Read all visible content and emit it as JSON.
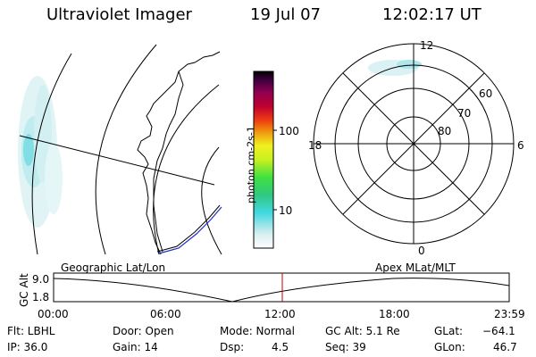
{
  "header": {
    "title": "Ultraviolet Imager",
    "date": "19 Jul 07",
    "time": "12:02:17 UT"
  },
  "colorbar": {
    "unit_label": "photon cm-2s-1",
    "ticks": [
      "100",
      "10"
    ]
  },
  "polar_plot": {
    "mlt_labels": {
      "top": "12",
      "left": "18",
      "right": "6",
      "bottom": "0"
    },
    "lat_labels": [
      "60",
      "70",
      "80"
    ]
  },
  "geo_map": {
    "label": "Geographic Lat/Lon"
  },
  "apex_label": "Apex MLat/MLT",
  "altitude_plot": {
    "ylabel": "GC Alt",
    "y_ticks": [
      "9.0",
      "1.8"
    ],
    "x_ticks": [
      "00:00",
      "06:00",
      "12:00",
      "18:00",
      "23:59"
    ]
  },
  "status": {
    "flt": "Flt: LBHL",
    "ip": "IP: 36.0",
    "door": "Door: Open",
    "gain": "Gain: 14",
    "mode": "Mode: Normal",
    "dsp_label": "Dsp:",
    "dsp_value": "4.5",
    "gc_alt": "GC Alt: 5.1 Re",
    "seq": "Seq: 39",
    "glat_label": "GLat:",
    "glat_value": "−64.1",
    "glon_label": "GLon:",
    "glon_value": "46.7"
  },
  "colors": {
    "aurora": "#40d8e0",
    "coast": "#000000",
    "orbit_track": "#2030c0",
    "time_marker": "#c00000"
  }
}
